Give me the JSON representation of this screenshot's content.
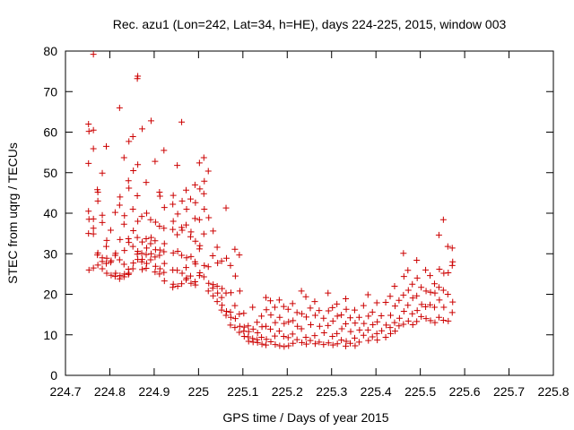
{
  "chart_data": {
    "type": "scatter",
    "title": "Rec. azu1 (Lon=242, Lat=34, h=HE), days 224-225, 2015, window 003",
    "xlabel": "GPS time / Days of year 2015",
    "ylabel": "STEC from uqrg / TECUs",
    "xlim": [
      224.7,
      225.8
    ],
    "ylim": [
      0,
      80
    ],
    "xticks": [
      "224.7",
      "224.8",
      "224.9",
      "225",
      "225.1",
      "225.2",
      "225.3",
      "225.4",
      "225.5",
      "225.6",
      "225.7",
      "225.8"
    ],
    "yticks": [
      "0",
      "10",
      "20",
      "30",
      "40",
      "50",
      "60",
      "70",
      "80"
    ],
    "grid": false,
    "legend": "none",
    "marker": "plus",
    "color": "#cc0000",
    "points": [
      [
        224.752,
        62.0
      ],
      [
        224.753,
        60.2
      ],
      [
        224.752,
        52.3
      ],
      [
        224.752,
        40.5
      ],
      [
        224.753,
        38.5
      ],
      [
        224.752,
        35.0
      ],
      [
        224.753,
        26.0
      ],
      [
        224.763,
        79.2
      ],
      [
        224.763,
        60.5
      ],
      [
        224.763,
        55.9
      ],
      [
        224.763,
        38.6
      ],
      [
        224.763,
        36.3
      ],
      [
        224.763,
        34.9
      ],
      [
        224.763,
        26.5
      ],
      [
        224.772,
        45.8
      ],
      [
        224.773,
        45.2
      ],
      [
        224.773,
        43.0
      ],
      [
        224.773,
        30.2
      ],
      [
        224.772,
        29.7
      ],
      [
        224.773,
        27.2
      ],
      [
        224.783,
        49.9
      ],
      [
        224.783,
        39.5
      ],
      [
        224.783,
        37.7
      ],
      [
        224.783,
        29.0
      ],
      [
        224.783,
        28.1
      ],
      [
        224.783,
        26.3
      ],
      [
        224.792,
        56.5
      ],
      [
        224.793,
        33.3
      ],
      [
        224.792,
        31.8
      ],
      [
        224.793,
        28.9
      ],
      [
        224.792,
        27.6
      ],
      [
        224.793,
        25.2
      ],
      [
        224.802,
        35.8
      ],
      [
        224.803,
        28.3
      ],
      [
        224.802,
        27.9
      ],
      [
        224.803,
        24.7
      ],
      [
        224.812,
        40.2
      ],
      [
        224.813,
        30.1
      ],
      [
        224.812,
        29.6
      ],
      [
        224.813,
        25.2
      ],
      [
        224.812,
        24.4
      ],
      [
        224.822,
        66.0
      ],
      [
        224.823,
        44.0
      ],
      [
        224.822,
        42.0
      ],
      [
        224.823,
        33.5
      ],
      [
        224.822,
        28.5
      ],
      [
        224.823,
        24.6
      ],
      [
        224.822,
        23.8
      ],
      [
        224.832,
        53.7
      ],
      [
        224.833,
        39.4
      ],
      [
        224.832,
        37.3
      ],
      [
        224.833,
        30.8
      ],
      [
        224.832,
        27.4
      ],
      [
        224.833,
        25.0
      ],
      [
        224.832,
        24.3
      ],
      [
        224.843,
        57.7
      ],
      [
        224.842,
        48.0
      ],
      [
        224.843,
        46.2
      ],
      [
        224.842,
        33.7
      ],
      [
        224.843,
        32.8
      ],
      [
        224.842,
        26.2
      ],
      [
        224.843,
        25.2
      ],
      [
        224.842,
        24.9
      ],
      [
        224.852,
        58.9
      ],
      [
        224.853,
        50.5
      ],
      [
        224.852,
        41.0
      ],
      [
        224.853,
        35.7
      ],
      [
        224.852,
        31.8
      ],
      [
        224.853,
        27.7
      ],
      [
        224.852,
        26.3
      ],
      [
        224.863,
        73.8
      ],
      [
        224.862,
        73.2
      ],
      [
        224.863,
        52.0
      ],
      [
        224.862,
        44.3
      ],
      [
        224.863,
        38.0
      ],
      [
        224.862,
        34.0
      ],
      [
        224.863,
        30.6
      ],
      [
        224.862,
        29.9
      ],
      [
        224.863,
        28.6
      ],
      [
        224.873,
        60.8
      ],
      [
        224.872,
        39.2
      ],
      [
        224.873,
        32.9
      ],
      [
        224.872,
        30.1
      ],
      [
        224.873,
        28.6
      ],
      [
        224.872,
        28.0
      ],
      [
        224.873,
        26.1
      ],
      [
        224.882,
        47.6
      ],
      [
        224.883,
        40.0
      ],
      [
        224.882,
        33.7
      ],
      [
        224.883,
        31.4
      ],
      [
        224.882,
        29.8
      ],
      [
        224.883,
        27.6
      ],
      [
        224.882,
        26.4
      ],
      [
        224.893,
        62.8
      ],
      [
        224.892,
        38.4
      ],
      [
        224.893,
        34.0
      ],
      [
        224.892,
        32.5
      ],
      [
        224.893,
        30.0
      ],
      [
        224.892,
        28.5
      ],
      [
        224.902,
        52.8
      ],
      [
        224.903,
        37.8
      ],
      [
        224.902,
        33.2
      ],
      [
        224.903,
        31.0
      ],
      [
        224.902,
        29.2
      ],
      [
        224.903,
        26.9
      ],
      [
        224.902,
        25.5
      ],
      [
        224.912,
        45.2
      ],
      [
        224.913,
        44.2
      ],
      [
        224.912,
        36.8
      ],
      [
        224.913,
        30.9
      ],
      [
        224.912,
        29.6
      ],
      [
        224.913,
        26.3
      ],
      [
        224.912,
        25.0
      ],
      [
        224.922,
        55.5
      ],
      [
        224.923,
        41.4
      ],
      [
        224.922,
        36.3
      ],
      [
        224.923,
        32.5
      ],
      [
        224.922,
        30.5
      ],
      [
        224.923,
        27.6
      ],
      [
        224.922,
        25.4
      ],
      [
        224.923,
        23.3
      ],
      [
        224.943,
        44.4
      ],
      [
        224.942,
        42.2
      ],
      [
        224.943,
        38.0
      ],
      [
        224.942,
        36.0
      ],
      [
        224.943,
        30.2
      ],
      [
        224.942,
        26.0
      ],
      [
        224.943,
        22.5
      ],
      [
        224.942,
        21.7
      ],
      [
        224.952,
        51.8
      ],
      [
        224.953,
        39.8
      ],
      [
        224.952,
        34.7
      ],
      [
        224.953,
        30.6
      ],
      [
        224.952,
        25.9
      ],
      [
        224.953,
        22.0
      ],
      [
        224.962,
        62.5
      ],
      [
        224.963,
        43.0
      ],
      [
        224.962,
        36.5
      ],
      [
        224.963,
        35.8
      ],
      [
        224.962,
        29.6
      ],
      [
        224.963,
        25.2
      ],
      [
        224.962,
        22.6
      ],
      [
        224.972,
        45.7
      ],
      [
        224.973,
        41.0
      ],
      [
        224.972,
        37.1
      ],
      [
        224.973,
        29.0
      ],
      [
        224.972,
        26.6
      ],
      [
        224.973,
        24.0
      ],
      [
        224.972,
        23.6
      ],
      [
        224.982,
        43.5
      ],
      [
        224.983,
        35.4
      ],
      [
        224.982,
        34.2
      ],
      [
        224.983,
        29.3
      ],
      [
        224.982,
        24.5
      ],
      [
        224.983,
        22.7
      ],
      [
        224.992,
        47.0
      ],
      [
        224.993,
        42.6
      ],
      [
        224.992,
        38.7
      ],
      [
        224.993,
        33.1
      ],
      [
        224.992,
        28.0
      ],
      [
        224.993,
        27.5
      ],
      [
        224.992,
        23.1
      ],
      [
        224.993,
        22.3
      ],
      [
        225.002,
        52.4
      ],
      [
        225.003,
        46.0
      ],
      [
        225.002,
        38.4
      ],
      [
        225.003,
        32.0
      ],
      [
        225.002,
        31.2
      ],
      [
        225.003,
        25.3
      ],
      [
        225.002,
        24.6
      ],
      [
        225.012,
        53.7
      ],
      [
        225.013,
        47.9
      ],
      [
        225.012,
        44.8
      ],
      [
        225.013,
        41.0
      ],
      [
        225.012,
        34.9
      ],
      [
        225.013,
        27.1
      ],
      [
        225.012,
        24.3
      ],
      [
        225.022,
        50.4
      ],
      [
        225.023,
        38.9
      ],
      [
        225.022,
        26.8
      ],
      [
        225.023,
        22.7
      ],
      [
        225.022,
        20.8
      ],
      [
        225.033,
        35.6
      ],
      [
        225.032,
        29.5
      ],
      [
        225.033,
        22.4
      ],
      [
        225.032,
        21.5
      ],
      [
        225.033,
        19.6
      ],
      [
        225.042,
        31.6
      ],
      [
        225.043,
        27.7
      ],
      [
        225.042,
        22.0
      ],
      [
        225.043,
        20.3
      ],
      [
        225.042,
        18.2
      ],
      [
        225.052,
        28.2
      ],
      [
        225.053,
        21.4
      ],
      [
        225.052,
        19.2
      ],
      [
        225.053,
        17.3
      ],
      [
        225.052,
        16.1
      ],
      [
        225.062,
        41.3
      ],
      [
        225.063,
        28.9
      ],
      [
        225.062,
        20.3
      ],
      [
        225.063,
        15.8
      ],
      [
        225.062,
        14.8
      ],
      [
        225.072,
        27.1
      ],
      [
        225.073,
        20.4
      ],
      [
        225.072,
        15.6
      ],
      [
        225.073,
        14.3
      ],
      [
        225.072,
        12.4
      ],
      [
        225.082,
        31.1
      ],
      [
        225.083,
        24.5
      ],
      [
        225.082,
        17.2
      ],
      [
        225.083,
        14.0
      ],
      [
        225.082,
        11.8
      ],
      [
        225.092,
        29.7
      ],
      [
        225.093,
        20.8
      ],
      [
        225.092,
        15.1
      ],
      [
        225.093,
        12.1
      ],
      [
        225.092,
        10.6
      ],
      [
        225.102,
        15.3
      ],
      [
        225.103,
        11.9
      ],
      [
        225.102,
        10.9
      ],
      [
        225.103,
        9.6
      ],
      [
        225.112,
        12.2
      ],
      [
        225.113,
        10.8
      ],
      [
        225.112,
        9.5
      ],
      [
        225.113,
        8.4
      ],
      [
        225.122,
        16.8
      ],
      [
        225.123,
        11.4
      ],
      [
        225.122,
        9.1
      ],
      [
        225.123,
        8.2
      ],
      [
        225.132,
        13.1
      ],
      [
        225.133,
        10.5
      ],
      [
        225.132,
        8.8
      ],
      [
        225.133,
        8.1
      ],
      [
        225.142,
        14.6
      ],
      [
        225.143,
        12.0
      ],
      [
        225.142,
        9.4
      ],
      [
        225.143,
        7.7
      ],
      [
        225.152,
        19.2
      ],
      [
        225.153,
        16.2
      ],
      [
        225.152,
        12.1
      ],
      [
        225.153,
        8.9
      ],
      [
        225.152,
        7.5
      ],
      [
        225.162,
        18.4
      ],
      [
        225.163,
        14.9
      ],
      [
        225.162,
        11.4
      ],
      [
        225.163,
        8.3
      ],
      [
        225.172,
        16.8
      ],
      [
        225.173,
        13.0
      ],
      [
        225.172,
        9.7
      ],
      [
        225.173,
        7.6
      ],
      [
        225.182,
        18.6
      ],
      [
        225.183,
        14.3
      ],
      [
        225.182,
        10.9
      ],
      [
        225.183,
        7.3
      ],
      [
        225.192,
        17.0
      ],
      [
        225.193,
        12.8
      ],
      [
        225.192,
        9.6
      ],
      [
        225.193,
        7.1
      ],
      [
        225.202,
        16.3
      ],
      [
        225.203,
        13.2
      ],
      [
        225.202,
        9.3
      ],
      [
        225.203,
        7.3
      ],
      [
        225.212,
        17.7
      ],
      [
        225.213,
        13.5
      ],
      [
        225.212,
        10.2
      ],
      [
        225.213,
        7.9
      ],
      [
        225.222,
        15.5
      ],
      [
        225.223,
        12.1
      ],
      [
        225.222,
        8.8
      ],
      [
        225.232,
        20.8
      ],
      [
        225.233,
        15.2
      ],
      [
        225.232,
        11.5
      ],
      [
        225.233,
        8.1
      ],
      [
        225.242,
        19.4
      ],
      [
        225.243,
        14.4
      ],
      [
        225.242,
        9.4
      ],
      [
        225.243,
        7.7
      ],
      [
        225.252,
        16.6
      ],
      [
        225.253,
        12.5
      ],
      [
        225.252,
        8.6
      ],
      [
        225.262,
        18.2
      ],
      [
        225.263,
        14.8
      ],
      [
        225.262,
        9.8
      ],
      [
        225.263,
        7.8
      ],
      [
        225.272,
        16.0
      ],
      [
        225.273,
        12.1
      ],
      [
        225.272,
        8.2
      ],
      [
        225.282,
        14.1
      ],
      [
        225.283,
        10.5
      ],
      [
        225.282,
        7.6
      ],
      [
        225.292,
        20.3
      ],
      [
        225.293,
        15.9
      ],
      [
        225.292,
        12.3
      ],
      [
        225.293,
        8.0
      ],
      [
        225.302,
        16.7
      ],
      [
        225.303,
        13.4
      ],
      [
        225.302,
        9.6
      ],
      [
        225.303,
        7.5
      ],
      [
        225.312,
        17.6
      ],
      [
        225.313,
        14.6
      ],
      [
        225.312,
        10.3
      ],
      [
        225.313,
        7.8
      ],
      [
        225.322,
        14.9
      ],
      [
        225.323,
        11.5
      ],
      [
        225.322,
        8.7
      ],
      [
        225.332,
        18.9
      ],
      [
        225.333,
        16.3
      ],
      [
        225.332,
        12.7
      ],
      [
        225.333,
        8.4
      ],
      [
        225.332,
        7.2
      ],
      [
        225.342,
        14.2
      ],
      [
        225.343,
        10.8
      ],
      [
        225.342,
        7.9
      ],
      [
        225.352,
        16.1
      ],
      [
        225.353,
        12.9
      ],
      [
        225.352,
        9.2
      ],
      [
        225.353,
        7.3
      ],
      [
        225.362,
        14.3
      ],
      [
        225.363,
        11.2
      ],
      [
        225.362,
        8.2
      ],
      [
        225.372,
        17.2
      ],
      [
        225.373,
        12.8
      ],
      [
        225.372,
        9.9
      ],
      [
        225.382,
        19.9
      ],
      [
        225.383,
        14.6
      ],
      [
        225.382,
        11.2
      ],
      [
        225.383,
        8.6
      ],
      [
        225.392,
        15.6
      ],
      [
        225.393,
        12.5
      ],
      [
        225.392,
        9.5
      ],
      [
        225.402,
        17.9
      ],
      [
        225.403,
        13.2
      ],
      [
        225.402,
        10.3
      ],
      [
        225.403,
        8.7
      ],
      [
        225.412,
        14.7
      ],
      [
        225.413,
        11.0
      ],
      [
        225.422,
        18.0
      ],
      [
        225.423,
        12.4
      ],
      [
        225.422,
        9.4
      ],
      [
        225.432,
        19.5
      ],
      [
        225.433,
        14.8
      ],
      [
        225.432,
        11.8
      ],
      [
        225.433,
        10.3
      ],
      [
        225.442,
        22.0
      ],
      [
        225.443,
        17.1
      ],
      [
        225.442,
        13.0
      ],
      [
        225.443,
        10.9
      ],
      [
        225.452,
        18.5
      ],
      [
        225.453,
        14.1
      ],
      [
        225.452,
        12.2
      ],
      [
        225.462,
        30.1
      ],
      [
        225.463,
        24.4
      ],
      [
        225.462,
        19.8
      ],
      [
        225.463,
        15.8
      ],
      [
        225.462,
        12.6
      ],
      [
        225.472,
        25.9
      ],
      [
        225.473,
        21.0
      ],
      [
        225.472,
        17.3
      ],
      [
        225.473,
        13.4
      ],
      [
        225.482,
        22.5
      ],
      [
        225.483,
        19.1
      ],
      [
        225.482,
        15.2
      ],
      [
        225.483,
        12.5
      ],
      [
        225.492,
        28.4
      ],
      [
        225.493,
        24.0
      ],
      [
        225.492,
        19.6
      ],
      [
        225.493,
        16.0
      ],
      [
        225.492,
        13.3
      ],
      [
        225.502,
        21.7
      ],
      [
        225.503,
        17.5
      ],
      [
        225.502,
        14.5
      ],
      [
        225.512,
        26.0
      ],
      [
        225.513,
        20.8
      ],
      [
        225.512,
        16.9
      ],
      [
        225.513,
        14.0
      ],
      [
        225.522,
        24.6
      ],
      [
        225.523,
        20.5
      ],
      [
        225.522,
        17.4
      ],
      [
        225.523,
        13.5
      ],
      [
        225.532,
        22.6
      ],
      [
        225.533,
        20.3
      ],
      [
        225.532,
        16.8
      ],
      [
        225.533,
        13.0
      ],
      [
        225.542,
        34.6
      ],
      [
        225.543,
        26.2
      ],
      [
        225.542,
        21.7
      ],
      [
        225.543,
        18.6
      ],
      [
        225.542,
        14.3
      ],
      [
        225.552,
        38.4
      ],
      [
        225.553,
        25.2
      ],
      [
        225.552,
        21.0
      ],
      [
        225.553,
        16.8
      ],
      [
        225.552,
        13.6
      ],
      [
        225.562,
        31.8
      ],
      [
        225.563,
        25.3
      ],
      [
        225.562,
        20.0
      ],
      [
        225.563,
        13.4
      ],
      [
        225.572,
        31.4
      ],
      [
        225.573,
        28.0
      ],
      [
        225.572,
        27.1
      ],
      [
        225.573,
        18.1
      ],
      [
        225.572,
        15.5
      ]
    ]
  }
}
